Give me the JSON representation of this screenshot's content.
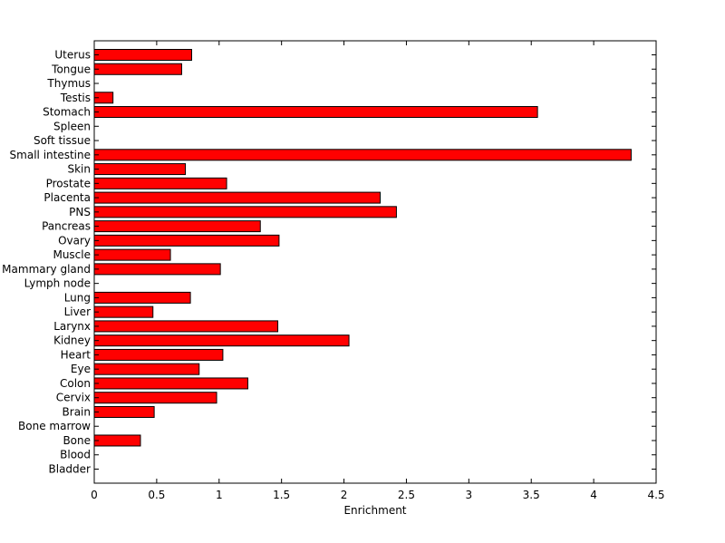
{
  "chart_data": {
    "type": "bar",
    "orientation": "horizontal",
    "title": "",
    "xlabel": "Enrichment",
    "ylabel": "",
    "xlim": [
      0,
      4.5
    ],
    "xticks": [
      "0",
      "0.5",
      "1",
      "1.5",
      "2",
      "2.5",
      "3",
      "3.5",
      "4",
      "4.5"
    ],
    "grid": false,
    "bar_color": "#ff0000",
    "categories": [
      "Bladder",
      "Blood",
      "Bone",
      "Bone marrow",
      "Brain",
      "Cervix",
      "Colon",
      "Eye",
      "Heart",
      "Kidney",
      "Larynx",
      "Liver",
      "Lung",
      "Lymph node",
      "Mammary gland",
      "Muscle",
      "Ovary",
      "Pancreas",
      "PNS",
      "Placenta",
      "Prostate",
      "Skin",
      "Small intestine",
      "Soft tissue",
      "Spleen",
      "Stomach",
      "Testis",
      "Thymus",
      "Tongue",
      "Uterus"
    ],
    "values": [
      0,
      0,
      0.37,
      0,
      0.48,
      0.98,
      1.23,
      0.84,
      1.03,
      2.04,
      1.47,
      0.47,
      0.77,
      0,
      1.01,
      0.61,
      1.48,
      1.33,
      2.42,
      2.29,
      1.06,
      0.73,
      4.3,
      0,
      0,
      3.55,
      0.15,
      0,
      0.7,
      0.78
    ]
  }
}
